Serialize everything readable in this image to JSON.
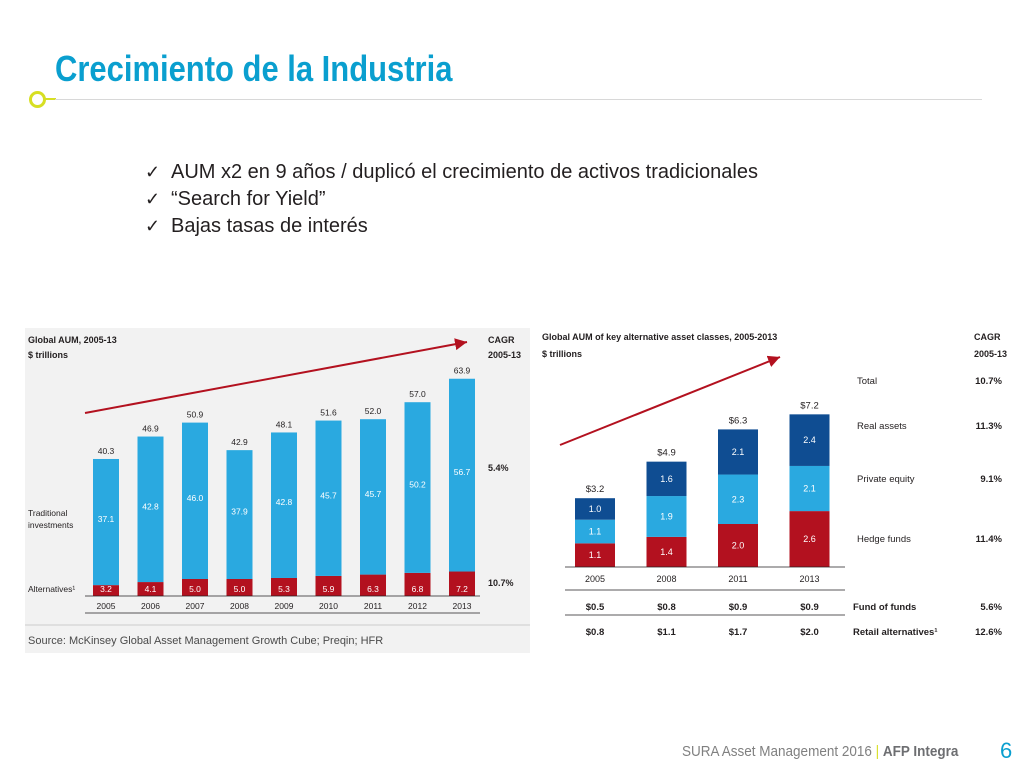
{
  "slide": {
    "title": "Crecimiento de la Industria",
    "bullets": [
      "AUM x2 en 9 años / duplicó el crecimiento de activos tradicionales",
      "“Search for Yield”",
      "Bajas tasas de interés"
    ],
    "check_icon": "✓",
    "footer_text": "SURA Asset Management 2016",
    "footer_separator": "|",
    "footer_brand": "AFP Integra",
    "page_number": "6"
  },
  "chart_data": [
    {
      "type": "bar",
      "stacked": true,
      "title": "Global AUM, 2005-13",
      "subtitle": "$ trillions",
      "cagr_header": [
        "CAGR",
        "2005-13"
      ],
      "categories": [
        "2005",
        "2006",
        "2007",
        "2008",
        "2009",
        "2010",
        "2011",
        "2012",
        "2013"
      ],
      "series": [
        {
          "name": "Alternatives¹",
          "color": "#b3111f",
          "values": [
            3.2,
            4.1,
            5.0,
            5.0,
            5.3,
            5.9,
            6.3,
            6.8,
            7.2
          ],
          "labels": [
            "3.2",
            "4.1",
            "5.0",
            "5.0",
            "5.3",
            "5.9",
            "6.3",
            "6.8",
            "7.2"
          ],
          "cagr": "10.7%"
        },
        {
          "name": "Traditional investments",
          "color": "#2aa9e0",
          "values": [
            37.1,
            42.8,
            46.0,
            37.9,
            42.8,
            45.7,
            45.7,
            50.2,
            56.7
          ],
          "labels": [
            "37.1",
            "42.8",
            "46.0",
            "37.9",
            "42.8",
            "45.7",
            "45.7",
            "50.2",
            "56.7"
          ],
          "cagr": "5.4%"
        }
      ],
      "totals": [
        "40.3",
        "46.9",
        "50.9",
        "42.9",
        "48.1",
        "51.6",
        "52.0",
        "57.0",
        "63.9"
      ],
      "source": "Source: McKinsey Global Asset Management Growth Cube; Preqin; HFR"
    },
    {
      "type": "bar",
      "stacked": true,
      "title": "Global AUM of key alternative asset classes, 2005-2013",
      "subtitle": "$ trillions",
      "cagr_header": [
        "CAGR",
        "2005-13"
      ],
      "categories": [
        "2005",
        "2008",
        "2011",
        "2013"
      ],
      "series": [
        {
          "name": "Hedge funds",
          "color": "#b3111f",
          "values": [
            1.1,
            1.4,
            2.0,
            2.6
          ],
          "labels": [
            "1.1",
            "1.4",
            "2.0",
            "2.6"
          ],
          "cagr": "11.4%"
        },
        {
          "name": "Private equity",
          "color": "#2aa9e0",
          "values": [
            1.1,
            1.9,
            2.3,
            2.1
          ],
          "labels": [
            "1.1",
            "1.9",
            "2.3",
            "2.1"
          ],
          "cagr": "9.1%"
        },
        {
          "name": "Real assets",
          "color": "#0f4d92",
          "values": [
            1.0,
            1.6,
            2.1,
            2.4
          ],
          "labels": [
            "1.0",
            "1.6",
            "2.1",
            "2.4"
          ],
          "cagr": "11.3%"
        }
      ],
      "totals": [
        "$3.2",
        "$4.9",
        "$6.3",
        "$7.2"
      ],
      "total_row": {
        "name": "Total",
        "cagr": "10.7%"
      },
      "extra_rows": [
        {
          "name": "Fund of funds",
          "values": [
            "$0.5",
            "$0.8",
            "$0.9",
            "$0.9"
          ],
          "cagr": "5.6%"
        },
        {
          "name": "Retail alternatives¹",
          "values": [
            "$0.8",
            "$1.1",
            "$1.7",
            "$2.0"
          ],
          "cagr": "12.6%"
        }
      ]
    }
  ],
  "colors": {
    "accent_blue": "#0a9fcf",
    "accent_lime": "#d7df23",
    "bar_red": "#b3111f",
    "bar_light_blue": "#2aa9e0",
    "bar_dark_blue": "#0f4d92",
    "panel_bg": "#f2f2f2",
    "trend_arrow": "#b3111f"
  }
}
